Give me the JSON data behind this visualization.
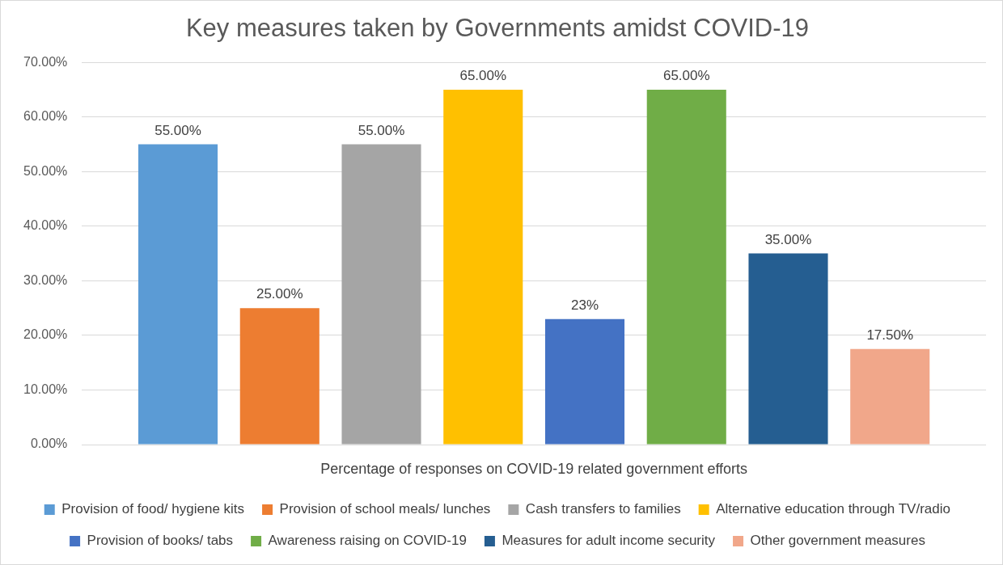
{
  "chart_data": {
    "type": "bar",
    "title": "Key measures taken by Governments amidst COVID-19",
    "xlabel": "Percentage of responses on COVID-19 related government efforts",
    "categories": [
      null
    ],
    "series": [
      {
        "name": "Provision of food/ hygiene kits",
        "color": "#5b9bd5",
        "values": [
          55
        ],
        "value_labels": [
          "55.00%"
        ]
      },
      {
        "name": "Provision of school meals/ lunches",
        "color": "#ed7d31",
        "values": [
          25
        ],
        "value_labels": [
          "25.00%"
        ]
      },
      {
        "name": "Cash transfers to families",
        "color": "#a5a5a5",
        "values": [
          55
        ],
        "value_labels": [
          "55.00%"
        ]
      },
      {
        "name": "Alternative education through TV/radio",
        "color": "#ffc000",
        "values": [
          65
        ],
        "value_labels": [
          "65.00%"
        ]
      },
      {
        "name": "Provision of books/ tabs",
        "color": "#4472c4",
        "values": [
          23
        ],
        "value_labels": [
          "23%"
        ]
      },
      {
        "name": "Awareness raising on COVID-19",
        "color": "#70ad47",
        "values": [
          65
        ],
        "value_labels": [
          "65.00%"
        ]
      },
      {
        "name": "Measures for adult income security",
        "color": "#255e91",
        "values": [
          35
        ],
        "value_labels": [
          "35.00%"
        ]
      },
      {
        "name": "Other government measures",
        "color": "#f1a78a",
        "values": [
          17.5
        ],
        "value_labels": [
          "17.50%"
        ]
      }
    ],
    "ylim": [
      0,
      70
    ],
    "yticks": [
      {
        "value": 0,
        "label": "0.00%"
      },
      {
        "value": 10,
        "label": "10.00%"
      },
      {
        "value": 20,
        "label": "20.00%"
      },
      {
        "value": 30,
        "label": "30.00%"
      },
      {
        "value": 40,
        "label": "40.00%"
      },
      {
        "value": 50,
        "label": "50.00%"
      },
      {
        "value": 60,
        "label": "60.00%"
      },
      {
        "value": 70,
        "label": "70.00%"
      }
    ],
    "grid": "y",
    "legend": "bottom"
  }
}
